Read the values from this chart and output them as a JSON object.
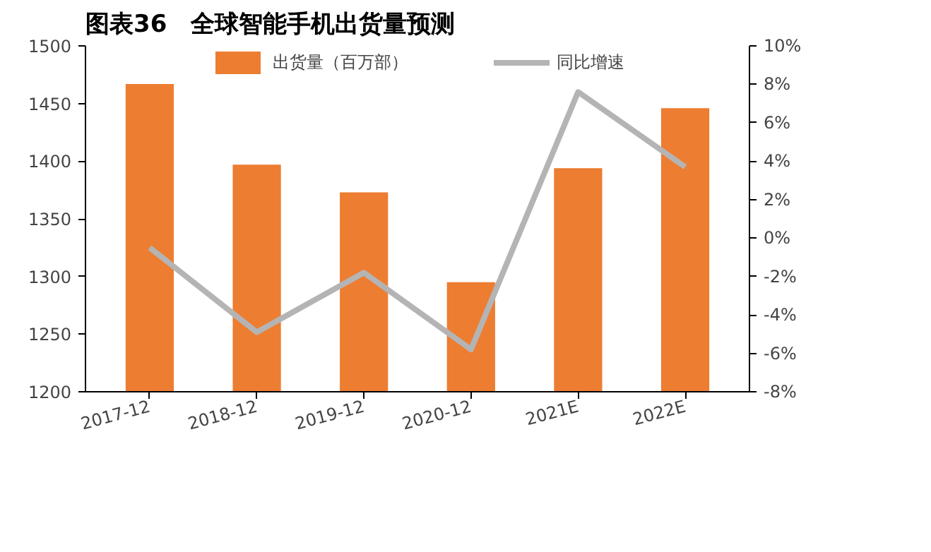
{
  "chart_data": {
    "type": "bar",
    "title": "图表36　全球智能手机出货量预测",
    "categories": [
      "2017-12",
      "2018-12",
      "2019-12",
      "2020-12",
      "2021E",
      "2022E"
    ],
    "series": [
      {
        "name": "出货量（百万部）",
        "color": "#ed7d31",
        "values": [
          1467,
          1397,
          1373,
          1295,
          1394,
          1446
        ]
      },
      {
        "name": "同比增速",
        "type": "line",
        "axis": "y2",
        "color": "#b4b4b4",
        "values": [
          -0.5,
          -4.9,
          -1.8,
          -5.8,
          7.6,
          3.7
        ]
      }
    ],
    "ylim": [
      1200,
      1500
    ],
    "yticks": [
      1200,
      1250,
      1300,
      1350,
      1400,
      1450,
      1500
    ],
    "y2lim": [
      -8,
      10
    ],
    "y2ticks": [
      {
        "value": -8,
        "label": "-8%"
      },
      {
        "value": -6,
        "label": "-6%"
      },
      {
        "value": -4,
        "label": "-4%"
      },
      {
        "value": -2,
        "label": "-2%"
      },
      {
        "value": 0,
        "label": "0%"
      },
      {
        "value": 2,
        "label": "2%"
      },
      {
        "value": 4,
        "label": "4%"
      },
      {
        "value": 6,
        "label": "6%"
      },
      {
        "value": 8,
        "label": "8%"
      },
      {
        "value": 10,
        "label": "10%"
      }
    ],
    "grid": false,
    "legend": "top"
  }
}
